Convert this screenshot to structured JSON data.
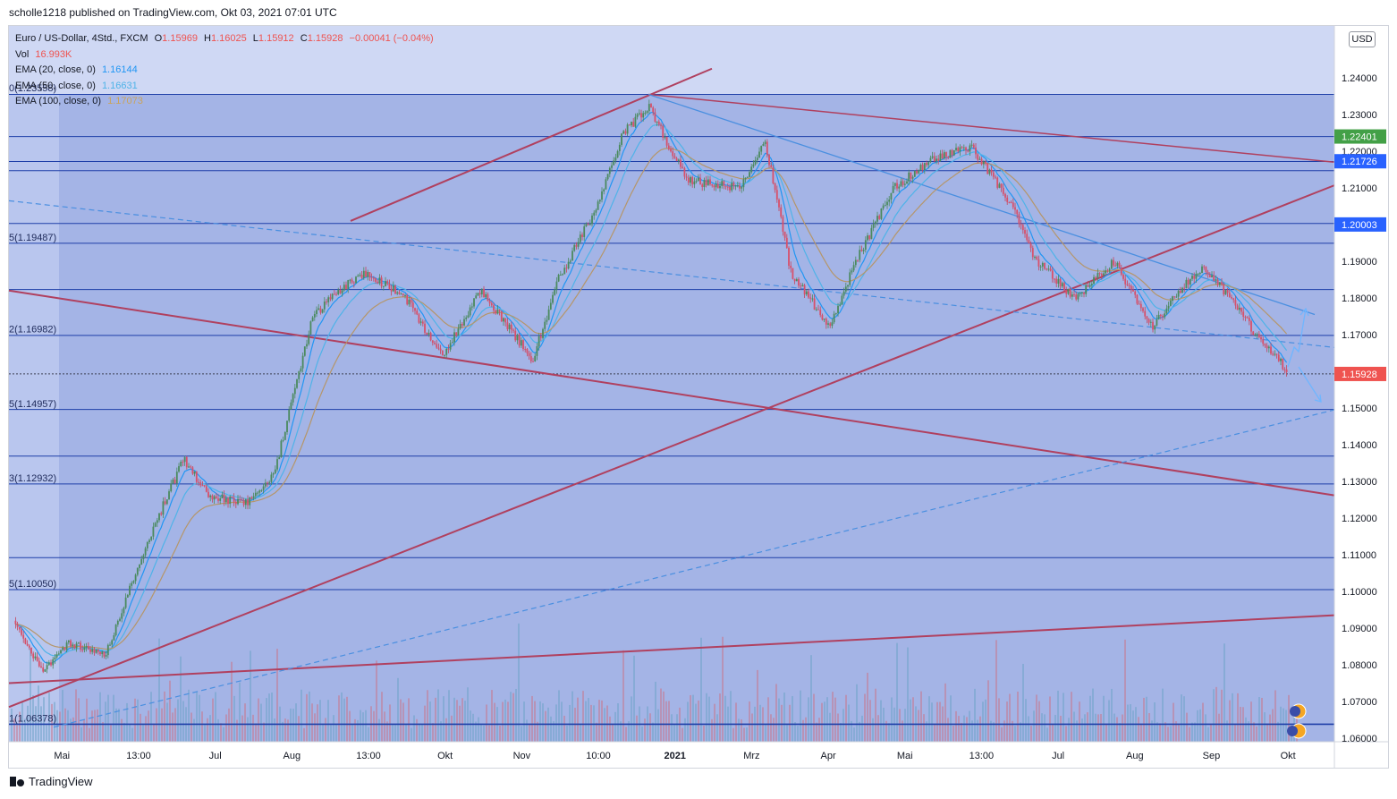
{
  "header": {
    "published_line": "scholle1218 published on TradingView.com, Okt 03, 2021 07:01 UTC"
  },
  "legend": {
    "symbol": "Euro / US-Dollar, 4Std., FXCM",
    "open_label": "O",
    "open": "1.15969",
    "high_label": "H",
    "high": "1.16025",
    "low_label": "L",
    "low": "1.15912",
    "close_label": "C",
    "close": "1.15928",
    "change": "−0.00041 (−0.04%)",
    "vol_label": "Vol",
    "vol": "16.993K",
    "ema20_label": "EMA (20, close, 0)",
    "ema20": "1.16144",
    "ema50_label": "EMA (50, close, 0)",
    "ema50": "1.16631",
    "ema100_label": "EMA (100, close, 0)",
    "ema100": "1.17073"
  },
  "currency_button": "USD",
  "footer": {
    "brand": "TradingView"
  },
  "colors": {
    "bg_light": "#cfd8f4",
    "bg_dark": "#a4b4e6",
    "blue_line": "#1e3fa8",
    "trend_red": "#b0405f",
    "trend_blue": "#4a8fe0",
    "ema20": "#2196f3",
    "ema50": "#4fb3e8",
    "ema100": "#b5966a",
    "price_label": "#ef5350",
    "green_label": "#43a047"
  },
  "chart_data": {
    "type": "line",
    "title": "Euro / US-Dollar, 4Std., FXCM",
    "ylim": [
      1.055,
      1.25
    ],
    "y_ticks": [
      "1.24000",
      "1.23000",
      "1.22000",
      "1.21000",
      "1.20000",
      "1.19000",
      "1.18000",
      "1.17000",
      "1.16000",
      "1.15000",
      "1.14000",
      "1.13000",
      "1.12000",
      "1.11000",
      "1.10000",
      "1.09000",
      "1.08000",
      "1.07000",
      "1.06000"
    ],
    "y_tick_values": [
      1.24,
      1.23,
      1.22,
      1.21,
      1.2,
      1.19,
      1.18,
      1.17,
      1.16,
      1.15,
      1.14,
      1.13,
      1.12,
      1.11,
      1.1,
      1.09,
      1.08,
      1.07,
      1.06
    ],
    "x_tick_labels": [
      "Mai",
      "13:00",
      "Jul",
      "Aug",
      "13:00",
      "Okt",
      "Nov",
      "10:00",
      "2021",
      "Mrz",
      "Apr",
      "Mai",
      "13:00",
      "Jul",
      "Aug",
      "Sep",
      "Okt"
    ],
    "price_path": [
      [
        0,
        1.092
      ],
      [
        0.02,
        1.078
      ],
      [
        0.04,
        1.086
      ],
      [
        0.07,
        1.083
      ],
      [
        0.1,
        1.112
      ],
      [
        0.13,
        1.136
      ],
      [
        0.15,
        1.126
      ],
      [
        0.18,
        1.124
      ],
      [
        0.2,
        1.132
      ],
      [
        0.23,
        1.175
      ],
      [
        0.25,
        1.182
      ],
      [
        0.27,
        1.187
      ],
      [
        0.3,
        1.181
      ],
      [
        0.33,
        1.164
      ],
      [
        0.36,
        1.182
      ],
      [
        0.38,
        1.173
      ],
      [
        0.4,
        1.163
      ],
      [
        0.42,
        1.185
      ],
      [
        0.45,
        1.205
      ],
      [
        0.47,
        1.225
      ],
      [
        0.49,
        1.232
      ],
      [
        0.52,
        1.212
      ],
      [
        0.56,
        1.21
      ],
      [
        0.58,
        1.223
      ],
      [
        0.6,
        1.187
      ],
      [
        0.63,
        1.172
      ],
      [
        0.65,
        1.19
      ],
      [
        0.68,
        1.21
      ],
      [
        0.71,
        1.218
      ],
      [
        0.74,
        1.221
      ],
      [
        0.77,
        1.206
      ],
      [
        0.79,
        1.19
      ],
      [
        0.82,
        1.18
      ],
      [
        0.85,
        1.19
      ],
      [
        0.88,
        1.172
      ],
      [
        0.9,
        1.182
      ],
      [
        0.92,
        1.188
      ],
      [
        0.94,
        1.18
      ],
      [
        0.96,
        1.17
      ],
      [
        0.985,
        1.16
      ]
    ],
    "horizontal_levels": [
      1.2355,
      1.224,
      1.2172,
      1.2147,
      1.2003,
      1.1949,
      1.1823,
      1.1698,
      1.1593,
      1.1496,
      1.1369,
      1.1293,
      1.1092,
      1.1005,
      1.0638
    ],
    "left_fib_labels": [
      "0(1.23558)",
      "5(1.19487)",
      "2(1.16982)",
      "5(1.14957)",
      "3(1.12932)",
      "5(1.10050)",
      "1(1.06378)"
    ],
    "left_fib_values": [
      1.23558,
      1.19487,
      1.16982,
      1.14957,
      1.12932,
      1.1005,
      1.06378
    ],
    "right_price_labels": [
      {
        "text": "1.22401",
        "value": 1.22401,
        "color": "#43a047"
      },
      {
        "text": "1.21726",
        "value": 1.21726,
        "color": "#2962ff"
      },
      {
        "text": "1.20003",
        "value": 1.20003,
        "color": "#2962ff"
      },
      {
        "text": "1.15928",
        "value": 1.15928,
        "color": "#ef5350"
      }
    ]
  }
}
